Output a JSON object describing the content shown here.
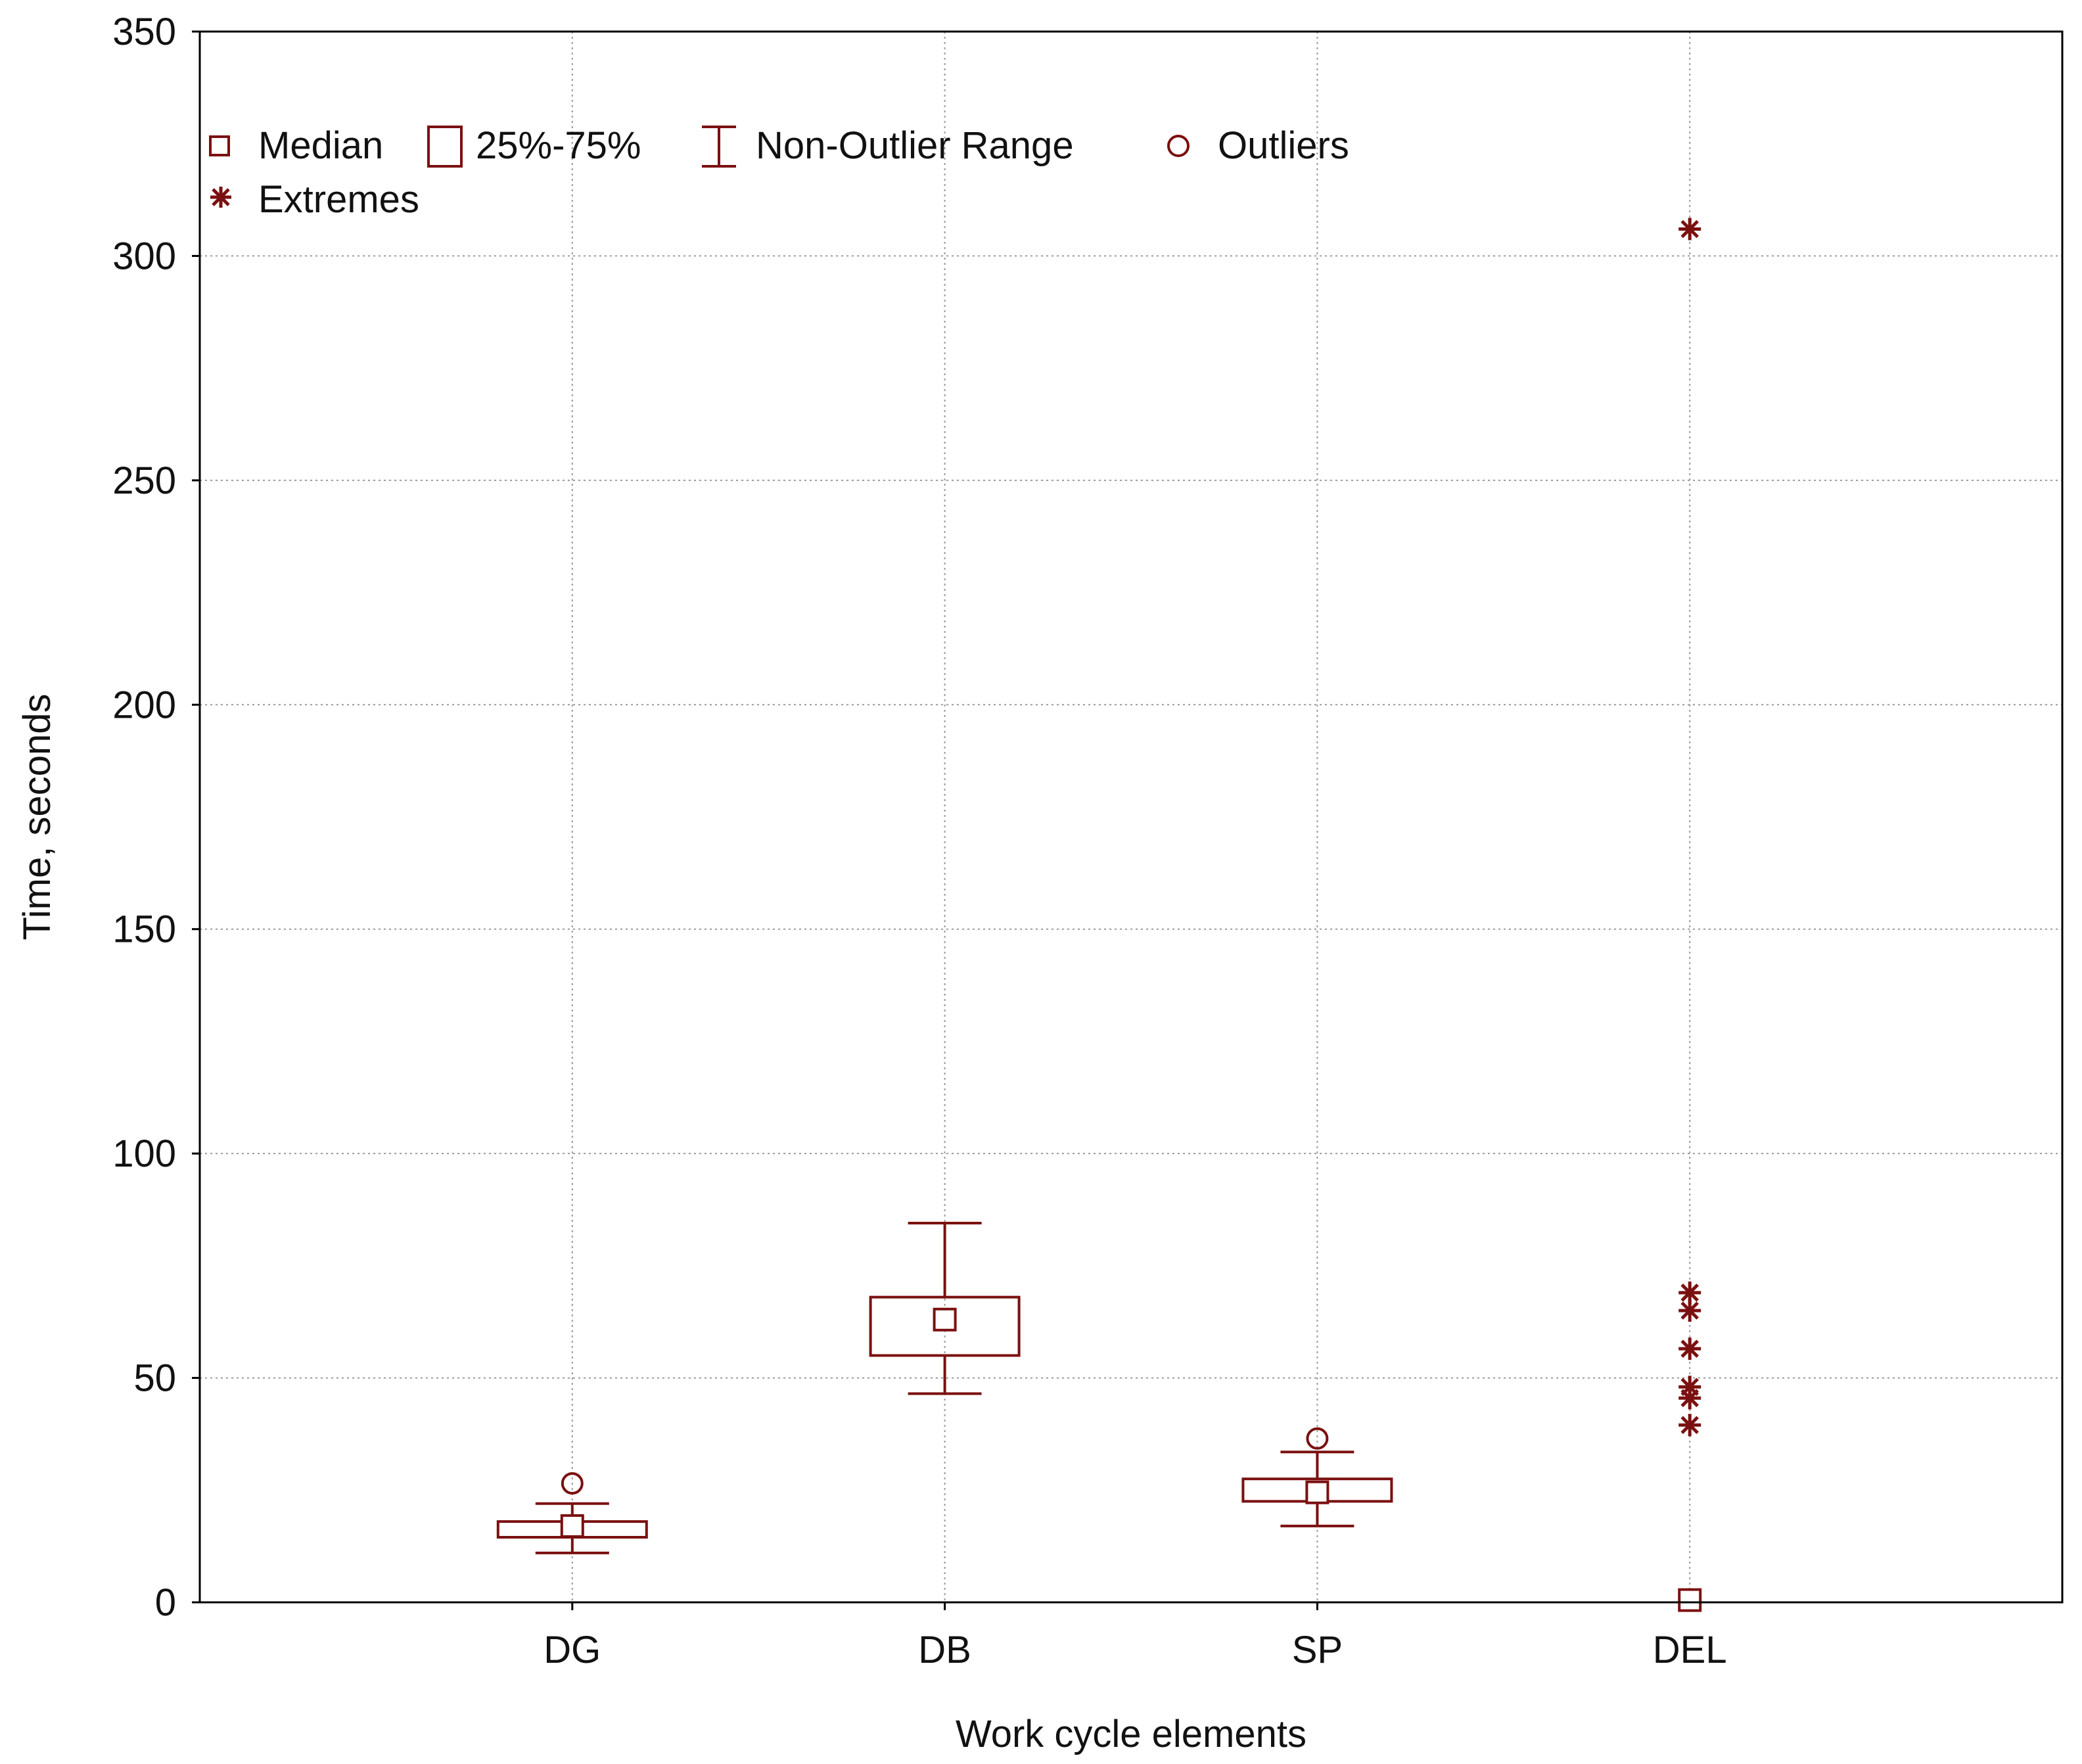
{
  "colors": {
    "mark": "#7b1010",
    "frame": "#000000",
    "grid": "#9a9a9a",
    "text": "#111111"
  },
  "chart_data": {
    "type": "boxplot",
    "xlabel": "Work cycle elements",
    "ylabel": "Time, seconds",
    "ylim": [
      0,
      350
    ],
    "yticks": [
      0,
      50,
      100,
      150,
      200,
      250,
      300,
      350
    ],
    "grid": true,
    "legend_position": "top-left",
    "legend": [
      {
        "key": "median",
        "label": "Median"
      },
      {
        "key": "box",
        "label": "25%-75%"
      },
      {
        "key": "whisker",
        "label": "Non-Outlier Range"
      },
      {
        "key": "outlier",
        "label": "Outliers"
      },
      {
        "key": "extreme",
        "label": "Extremes"
      }
    ],
    "categories": [
      "DG",
      "DB",
      "SP",
      "DEL"
    ],
    "series": [
      {
        "category": "DG",
        "median": 17,
        "q1": 14.5,
        "q3": 18,
        "min": 11,
        "max": 22,
        "outliers": [
          26.5
        ],
        "extremes": []
      },
      {
        "category": "DB",
        "median": 63,
        "q1": 55,
        "q3": 68,
        "min": 46.5,
        "max": 84.5,
        "outliers": [],
        "extremes": []
      },
      {
        "category": "SP",
        "median": 24.5,
        "q1": 22.5,
        "q3": 27.5,
        "min": 17,
        "max": 33.5,
        "outliers": [
          36.5
        ],
        "extremes": []
      },
      {
        "category": "DEL",
        "median": 0.5,
        "q1": 0.5,
        "q3": 0.5,
        "min": 0.5,
        "max": 0.5,
        "outliers": [],
        "extremes": [
          306,
          69,
          65,
          56.5,
          48,
          45.5,
          39.5
        ]
      }
    ]
  }
}
